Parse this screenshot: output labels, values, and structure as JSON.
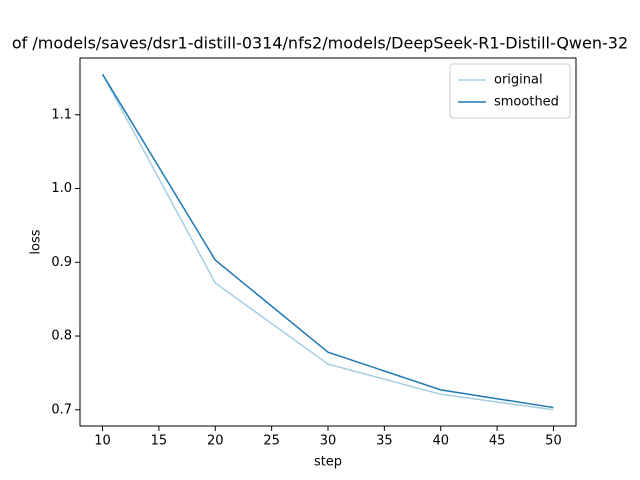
{
  "chart_data": {
    "type": "line",
    "title": "of /models/saves/dsr1-distill-0314/nfs2/models/DeepSeek-R1-Distill-Qwen-32",
    "x_label": "step",
    "y_label": "loss",
    "x": [
      10,
      20,
      30,
      40,
      50
    ],
    "series": [
      {
        "name": "original",
        "color": "#a6cee3",
        "values": [
          1.155,
          0.872,
          0.762,
          0.721,
          0.7
        ]
      },
      {
        "name": "smoothed",
        "color": "#1f78b4",
        "values": [
          1.155,
          0.903,
          0.778,
          0.727,
          0.703
        ]
      }
    ],
    "xlim": [
      8,
      52
    ],
    "ylim": [
      0.678,
      1.177
    ],
    "xticks": [
      10,
      15,
      20,
      25,
      30,
      35,
      40,
      45,
      50
    ],
    "yticks": [
      0.7,
      0.8,
      0.9,
      {
        "value": 1,
        "label": "1.0"
      },
      1.1
    ],
    "grid": false,
    "legend": "upper right"
  }
}
